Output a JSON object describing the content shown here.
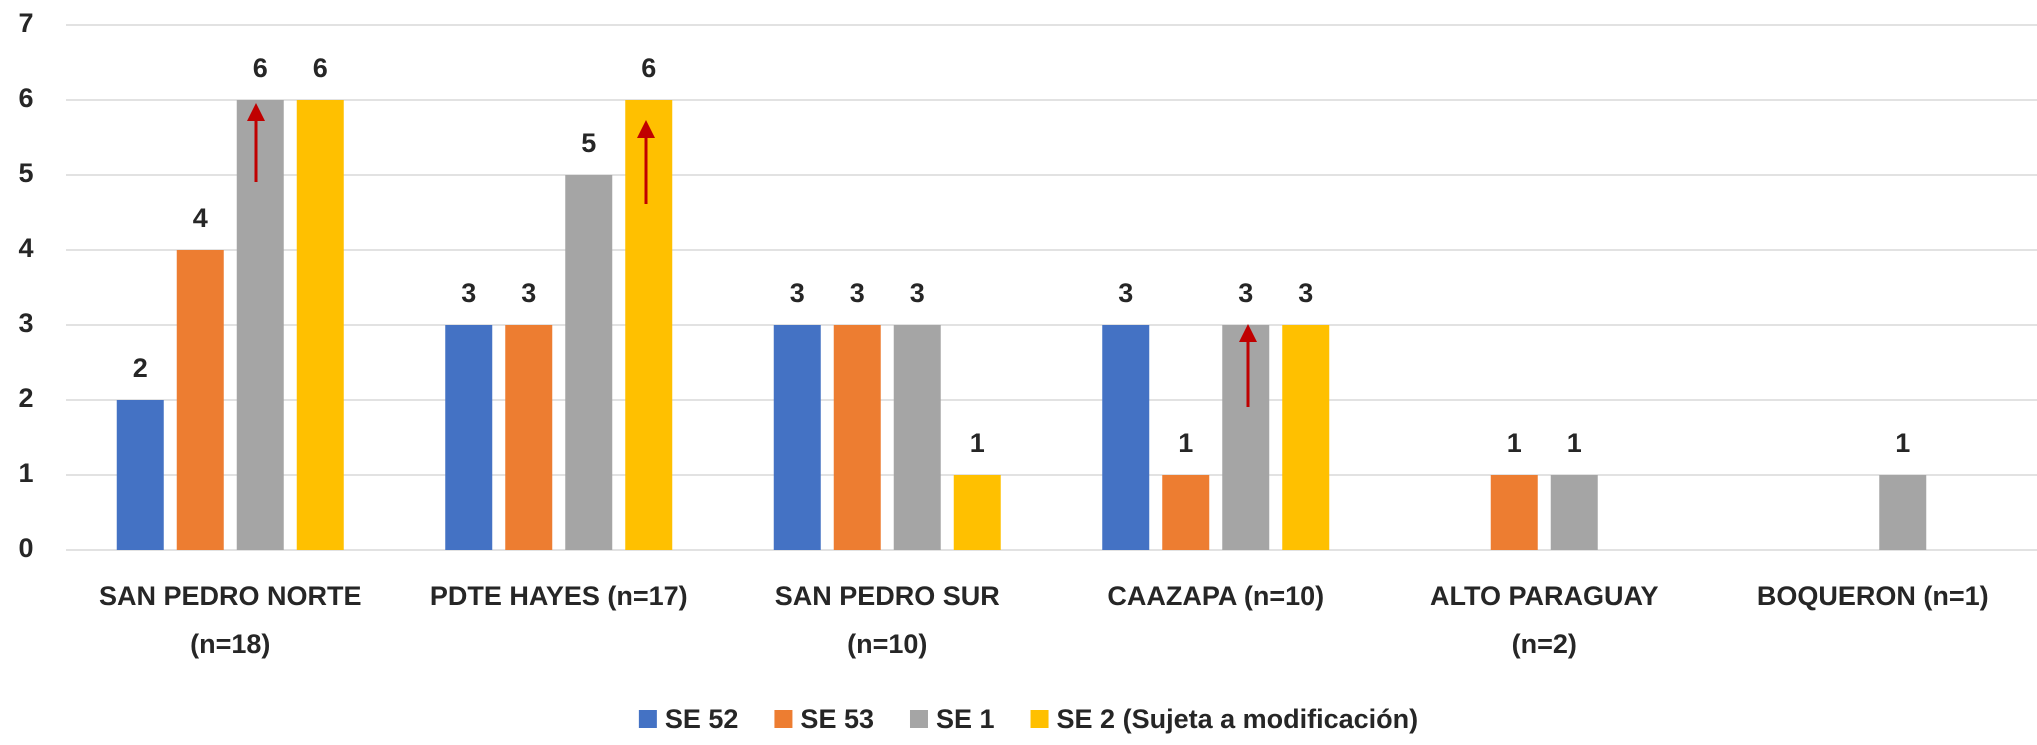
{
  "chart_data": {
    "type": "bar",
    "categories": [
      [
        "SAN PEDRO NORTE",
        "(n=18)"
      ],
      [
        "PDTE HAYES (n=17)"
      ],
      [
        "SAN PEDRO SUR",
        "(n=10)"
      ],
      [
        "CAAZAPA (n=10)"
      ],
      [
        "ALTO PARAGUAY",
        "(n=2)"
      ],
      [
        "BOQUERON (n=1)"
      ]
    ],
    "series": [
      {
        "name": "SE 52",
        "color": "#4472c4",
        "values": [
          2,
          3,
          3,
          3,
          null,
          null
        ]
      },
      {
        "name": "SE 53",
        "color": "#ed7d31",
        "values": [
          4,
          3,
          3,
          1,
          1,
          null
        ]
      },
      {
        "name": "SE 1",
        "color": "#a5a5a5",
        "values": [
          6,
          5,
          3,
          3,
          1,
          1
        ]
      },
      {
        "name": "SE 2 (Sujeta a modificación)",
        "color": "#ffc000",
        "values": [
          6,
          6,
          1,
          3,
          null,
          null
        ]
      }
    ],
    "ylim": [
      0,
      7
    ],
    "yticks": [
      0,
      1,
      2,
      3,
      4,
      5,
      6,
      7
    ],
    "grid": true,
    "legend": "bottom"
  }
}
